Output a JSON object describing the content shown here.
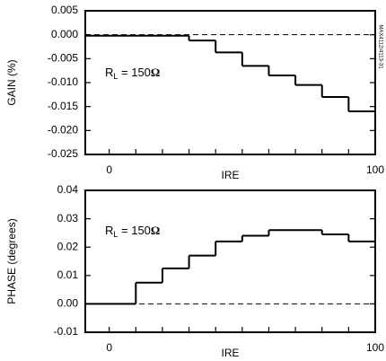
{
  "chart_data": [
    {
      "type": "step",
      "side_note": "MAX4112/4113-31",
      "ylabel": "GAIN (%)",
      "xlabel": "IRE",
      "annotation": {
        "main": "R",
        "sub": "L",
        "rest": " = 150",
        "unit": "Ω"
      },
      "xlim": [
        -9,
        100
      ],
      "xticks": [
        0,
        100
      ],
      "xminor_ticks": [
        10,
        20,
        30,
        40,
        50,
        60,
        70,
        80,
        90
      ],
      "ylim": [
        -0.025,
        0.005
      ],
      "yticks": [
        0.005,
        {
          "value": 0,
          "label": "0.000"
        },
        -0.005,
        {
          "value": -0.01,
          "label": "-0.010"
        },
        -0.015,
        {
          "value": -0.02,
          "label": "-0.020"
        },
        -0.025
      ],
      "reference_line": 0,
      "x": [
        -9,
        30,
        40,
        50,
        60,
        70,
        80,
        90
      ],
      "values": [
        -0.0002,
        -0.0012,
        -0.0037,
        -0.0065,
        -0.0085,
        -0.0105,
        -0.013,
        -0.016
      ]
    },
    {
      "type": "step",
      "ylabel": "PHASE (degrees)",
      "xlabel": "IRE",
      "annotation": {
        "main": "R",
        "sub": "L",
        "rest": " = 150",
        "unit": "Ω"
      },
      "xlim": [
        -9,
        100
      ],
      "xticks": [
        0,
        100
      ],
      "xminor_ticks": [
        10,
        20,
        30,
        40,
        50,
        60,
        70,
        80,
        90
      ],
      "ylim": [
        -0.01,
        0.04
      ],
      "yticks": [
        0.04,
        0.03,
        0.02,
        0.01,
        {
          "value": 0,
          "label": "0.00"
        },
        -0.01
      ],
      "reference_line": 0,
      "x": [
        -9,
        10,
        20,
        30,
        40,
        50,
        60,
        80,
        90
      ],
      "values": [
        0,
        0.0075,
        0.0125,
        0.017,
        0.022,
        0.024,
        0.026,
        0.0245,
        0.022
      ]
    }
  ]
}
